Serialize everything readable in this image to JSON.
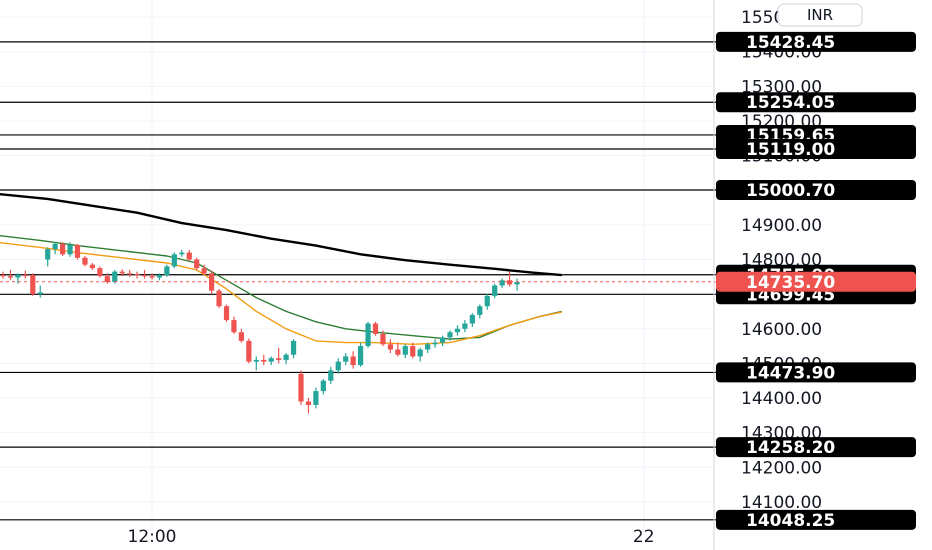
{
  "currency": "INR",
  "colors": {
    "up": "#26a69a",
    "down": "#ef5350",
    "grid": "#f0f3fa",
    "level_line": "#000000",
    "ma_long": "#000000",
    "ma_mid": "#2e7d32",
    "ma_short": "#f39c12",
    "current_badge": "#ef5350",
    "level_badge": "#000000"
  },
  "chart_data": {
    "type": "candlestick",
    "title": "",
    "xlabel": "",
    "ylabel": "",
    "ylim": [
      13990,
      15480
    ],
    "grid": true,
    "y_ticks": [
      "15500.00",
      "15400.00",
      "15300.00",
      "15200.00",
      "15100.00",
      "15000.00",
      "14900.00",
      "14800.00",
      "14700.00",
      "14600.00",
      "14500.00",
      "14400.00",
      "14300.00",
      "14200.00",
      "14100.00"
    ],
    "x_ticks": [
      {
        "label": "12:00",
        "index": 20
      },
      {
        "label": "22",
        "index": 86
      }
    ],
    "current_price": "14735.70",
    "levels": [
      "15428.45",
      "15254.05",
      "15159.65",
      "15119.00",
      "15000.70",
      "14755.90",
      "14699.45",
      "14473.90",
      "14258.20",
      "14048.25"
    ],
    "candles": [
      [
        14755,
        14765,
        14745,
        14752
      ],
      [
        14752,
        14770,
        14740,
        14748
      ],
      [
        14748,
        14760,
        14730,
        14756
      ],
      [
        14756,
        14768,
        14745,
        14752
      ],
      [
        14755,
        14760,
        14695,
        14700
      ],
      [
        14700,
        14725,
        14690,
        14705
      ],
      [
        14800,
        14835,
        14780,
        14830
      ],
      [
        14830,
        14850,
        14815,
        14845
      ],
      [
        14845,
        14850,
        14810,
        14815
      ],
      [
        14815,
        14850,
        14808,
        14842
      ],
      [
        14842,
        14845,
        14800,
        14805
      ],
      [
        14805,
        14810,
        14780,
        14785
      ],
      [
        14785,
        14790,
        14770,
        14775
      ],
      [
        14775,
        14780,
        14748,
        14752
      ],
      [
        14752,
        14760,
        14730,
        14735
      ],
      [
        14735,
        14770,
        14730,
        14765
      ],
      [
        14765,
        14772,
        14752,
        14760
      ],
      [
        14760,
        14770,
        14750,
        14758
      ],
      [
        14758,
        14765,
        14745,
        14755
      ],
      [
        14755,
        14770,
        14745,
        14752
      ],
      [
        14752,
        14760,
        14742,
        14748
      ],
      [
        14748,
        14760,
        14740,
        14755
      ],
      [
        14755,
        14785,
        14750,
        14780
      ],
      [
        14780,
        14820,
        14775,
        14815
      ],
      [
        14815,
        14828,
        14808,
        14820
      ],
      [
        14820,
        14828,
        14795,
        14800
      ],
      [
        14800,
        14805,
        14770,
        14775
      ],
      [
        14775,
        14785,
        14755,
        14760
      ],
      [
        14760,
        14768,
        14700,
        14710
      ],
      [
        14710,
        14715,
        14660,
        14665
      ],
      [
        14665,
        14670,
        14620,
        14625
      ],
      [
        14625,
        14635,
        14585,
        14590
      ],
      [
        14590,
        14600,
        14560,
        14565
      ],
      [
        14565,
        14572,
        14500,
        14505
      ],
      [
        14505,
        14520,
        14480,
        14510
      ],
      [
        14510,
        14525,
        14495,
        14505
      ],
      [
        14505,
        14520,
        14495,
        14515
      ],
      [
        14515,
        14545,
        14500,
        14510
      ],
      [
        14510,
        14530,
        14498,
        14525
      ],
      [
        14525,
        14570,
        14515,
        14565
      ],
      [
        14470,
        14480,
        14380,
        14390
      ],
      [
        14390,
        14400,
        14355,
        14380
      ],
      [
        14380,
        14430,
        14370,
        14420
      ],
      [
        14420,
        14455,
        14410,
        14450
      ],
      [
        14450,
        14490,
        14440,
        14480
      ],
      [
        14480,
        14515,
        14470,
        14505
      ],
      [
        14505,
        14530,
        14495,
        14520
      ],
      [
        14520,
        14535,
        14485,
        14495
      ],
      [
        14495,
        14560,
        14490,
        14550
      ],
      [
        14550,
        14620,
        14545,
        14615
      ],
      [
        14615,
        14620,
        14580,
        14585
      ],
      [
        14585,
        14595,
        14550,
        14555
      ],
      [
        14555,
        14570,
        14530,
        14540
      ],
      [
        14540,
        14560,
        14520,
        14525
      ],
      [
        14525,
        14555,
        14515,
        14550
      ],
      [
        14550,
        14560,
        14515,
        14520
      ],
      [
        14520,
        14545,
        14505,
        14540
      ],
      [
        14540,
        14560,
        14530,
        14555
      ],
      [
        14555,
        14570,
        14545,
        14560
      ],
      [
        14560,
        14580,
        14550,
        14575
      ],
      [
        14575,
        14595,
        14565,
        14590
      ],
      [
        14590,
        14610,
        14580,
        14600
      ],
      [
        14600,
        14625,
        14590,
        14615
      ],
      [
        14615,
        14645,
        14605,
        14640
      ],
      [
        14640,
        14670,
        14630,
        14665
      ],
      [
        14665,
        14700,
        14655,
        14695
      ],
      [
        14695,
        14730,
        14688,
        14725
      ],
      [
        14725,
        14745,
        14718,
        14740
      ],
      [
        14740,
        14765,
        14722,
        14728
      ],
      [
        14728,
        14745,
        14710,
        14735
      ]
    ],
    "candle_x_start": 0,
    "candle_step": 7.45,
    "ma_long": [
      [
        -1,
        14990
      ],
      [
        6,
        14975
      ],
      [
        12,
        14955
      ],
      [
        18,
        14935
      ],
      [
        24,
        14905
      ],
      [
        30,
        14885
      ],
      [
        36,
        14860
      ],
      [
        42,
        14840
      ],
      [
        48,
        14815
      ],
      [
        54,
        14798
      ],
      [
        60,
        14785
      ],
      [
        66,
        14773
      ],
      [
        71,
        14762
      ],
      [
        75,
        14755
      ]
    ],
    "ma_mid": [
      [
        -1,
        14870
      ],
      [
        5,
        14855
      ],
      [
        10,
        14840
      ],
      [
        16,
        14825
      ],
      [
        22,
        14810
      ],
      [
        26,
        14790
      ],
      [
        30,
        14740
      ],
      [
        34,
        14690
      ],
      [
        38,
        14650
      ],
      [
        42,
        14620
      ],
      [
        46,
        14600
      ],
      [
        50,
        14590
      ],
      [
        55,
        14580
      ],
      [
        60,
        14570
      ],
      [
        64,
        14575
      ],
      [
        68,
        14610
      ],
      [
        72,
        14635
      ],
      [
        75,
        14650
      ]
    ],
    "ma_short": [
      [
        -1,
        14850
      ],
      [
        5,
        14835
      ],
      [
        10,
        14820
      ],
      [
        16,
        14805
      ],
      [
        22,
        14790
      ],
      [
        26,
        14770
      ],
      [
        30,
        14715
      ],
      [
        34,
        14650
      ],
      [
        38,
        14600
      ],
      [
        42,
        14565
      ],
      [
        46,
        14560
      ],
      [
        50,
        14560
      ],
      [
        55,
        14555
      ],
      [
        60,
        14560
      ],
      [
        64,
        14580
      ],
      [
        68,
        14610
      ],
      [
        72,
        14635
      ],
      [
        75,
        14648
      ]
    ]
  }
}
